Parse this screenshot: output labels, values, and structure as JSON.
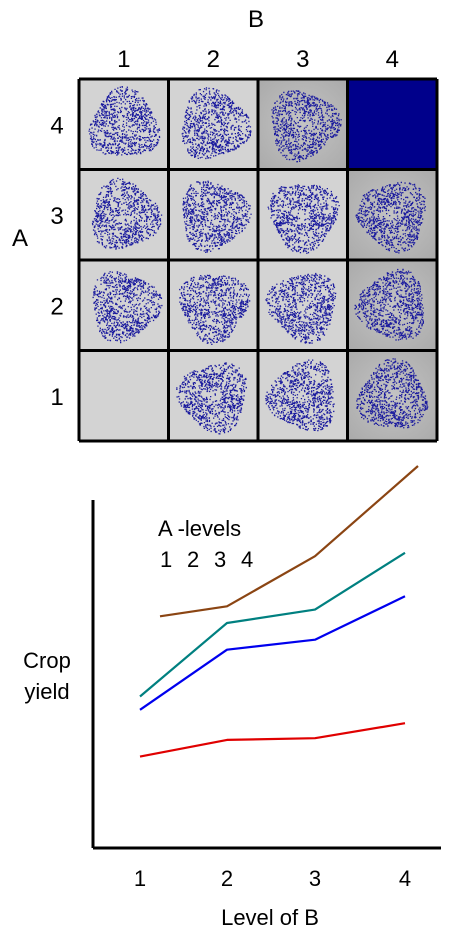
{
  "grid": {
    "title_b": "B",
    "title_a": "A",
    "col_labels": [
      "1",
      "2",
      "3",
      "4"
    ],
    "row_labels": [
      "4",
      "3",
      "2",
      "1"
    ],
    "colors": {
      "cell_background": "#d3d3d3",
      "cell_shaded": "#a8a8a8",
      "dots": "#1a1a9e",
      "solid": "#00008b",
      "border": "#000000"
    }
  },
  "chart_data": {
    "type": "line",
    "x": [
      1,
      2,
      3,
      4
    ],
    "xlabel": "Level of B",
    "ylabel": "Crop yield",
    "legend_title": "A -levels",
    "ylim": [
      0,
      100
    ],
    "grid": false,
    "series": [
      {
        "name": "1",
        "color": "#e00000",
        "values": [
          13,
          18,
          18.5,
          23
        ]
      },
      {
        "name": "2",
        "color": "#0000ee",
        "values": [
          27,
          45,
          48,
          61
        ]
      },
      {
        "name": "3",
        "color": "#008080",
        "values": [
          31,
          53,
          57,
          74
        ]
      },
      {
        "name": "4",
        "color": "#8b4513",
        "values": [
          55,
          58,
          73,
          100
        ]
      }
    ]
  }
}
